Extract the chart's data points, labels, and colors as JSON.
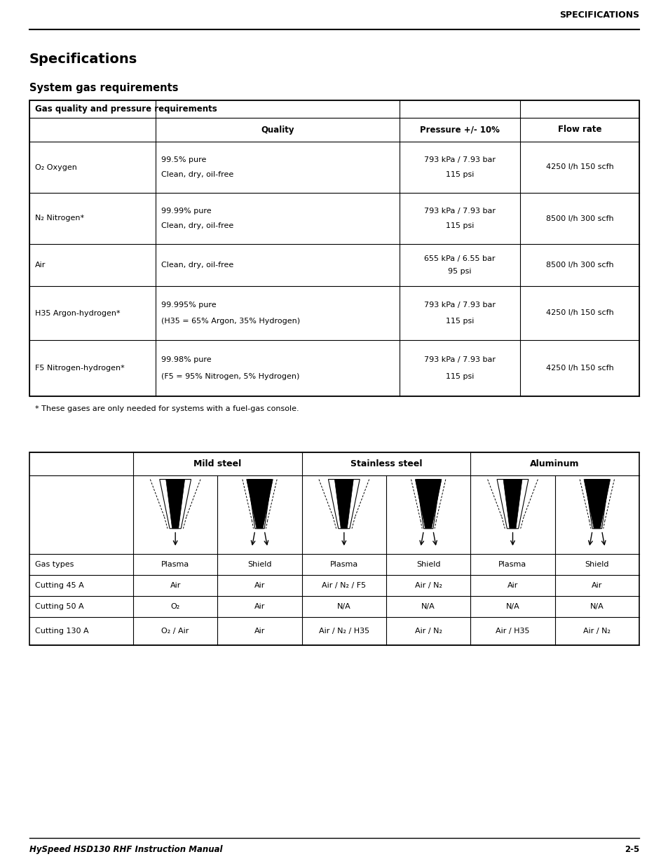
{
  "page_header": "SPECIFICATIONS",
  "title": "Specifications",
  "subtitle": "System gas requirements",
  "table1_header": "Gas quality and pressure requirements",
  "table1_col_headers": [
    "",
    "Quality",
    "Pressure +/- 10%",
    "Flow rate"
  ],
  "table1_rows": [
    [
      "O₂ Oxygen",
      "99.5% pure\nClean, dry, oil-free",
      "793 kPa / 7.93 bar\n115 psi",
      "4250 l/h 150 scfh"
    ],
    [
      "N₂ Nitrogen*",
      "99.99% pure\nClean, dry, oil-free",
      "793 kPa / 7.93 bar\n115 psi",
      "8500 l/h 300 scfh"
    ],
    [
      "Air",
      "Clean, dry, oil-free",
      "655 kPa / 6.55 bar\n95 psi",
      "8500 l/h 300 scfh"
    ],
    [
      "H35 Argon-hydrogen*",
      "99.995% pure\n(H35 = 65% Argon, 35% Hydrogen)",
      "793 kPa / 7.93 bar\n115 psi",
      "4250 l/h 150 scfh"
    ],
    [
      "F5 Nitrogen-hydrogen*",
      "99.98% pure\n(F5 = 95% Nitrogen, 5% Hydrogen)",
      "793 kPa / 7.93 bar\n115 psi",
      "4250 l/h 150 scfh"
    ]
  ],
  "footnote": "* These gases are only needed for systems with a fuel-gas console.",
  "table2_material_headers": [
    "Mild steel",
    "Stainless steel",
    "Aluminum"
  ],
  "table2_sub_headers": [
    "Plasma",
    "Shield",
    "Plasma",
    "Shield",
    "Plasma",
    "Shield"
  ],
  "table2_rows": [
    [
      "Gas types",
      "Plasma",
      "Shield",
      "Plasma",
      "Shield",
      "Plasma",
      "Shield"
    ],
    [
      "Cutting 45 A",
      "Air",
      "Air",
      "Air / N₂ / F5",
      "Air / N₂",
      "Air",
      "Air"
    ],
    [
      "Cutting 50 A",
      "O₂",
      "Air",
      "N/A",
      "N/A",
      "N/A",
      "N/A"
    ],
    [
      "Cutting 130 A",
      "O₂ / Air",
      "Air",
      "Air / N₂ / H35",
      "Air / N₂",
      "Air / H35",
      "Air / N₂"
    ]
  ],
  "footer_left": "HySpeed HSD130 RHF Instruction Manual",
  "footer_right": "2-5",
  "bg_color": "#ffffff",
  "text_color": "#000000"
}
